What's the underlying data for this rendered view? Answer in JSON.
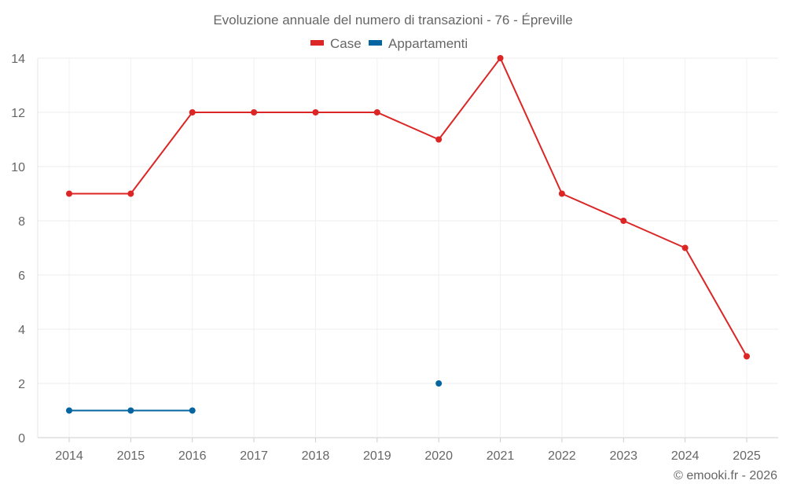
{
  "chart_data": {
    "type": "line",
    "title": "Evoluzione annuale del numero di transazioni - 76 - Épreville",
    "categories": [
      "2014",
      "2015",
      "2016",
      "2017",
      "2018",
      "2019",
      "2020",
      "2021",
      "2022",
      "2023",
      "2024",
      "2025"
    ],
    "series": [
      {
        "name": "Case",
        "color": "#dc2626",
        "values": [
          9,
          9,
          12,
          12,
          12,
          12,
          11,
          14,
          9,
          8,
          7,
          3
        ]
      },
      {
        "name": "Appartamenti",
        "color": "#0565a0",
        "values": [
          1,
          1,
          1,
          null,
          null,
          null,
          2,
          null,
          null,
          null,
          null,
          null
        ]
      }
    ],
    "xlabel": "",
    "ylabel": "",
    "ylim": [
      0,
      14
    ],
    "yticks": [
      0,
      2,
      4,
      6,
      8,
      10,
      12,
      14
    ],
    "grid": true,
    "legend": "top-center"
  },
  "credit": "© emooki.fr - 2026"
}
